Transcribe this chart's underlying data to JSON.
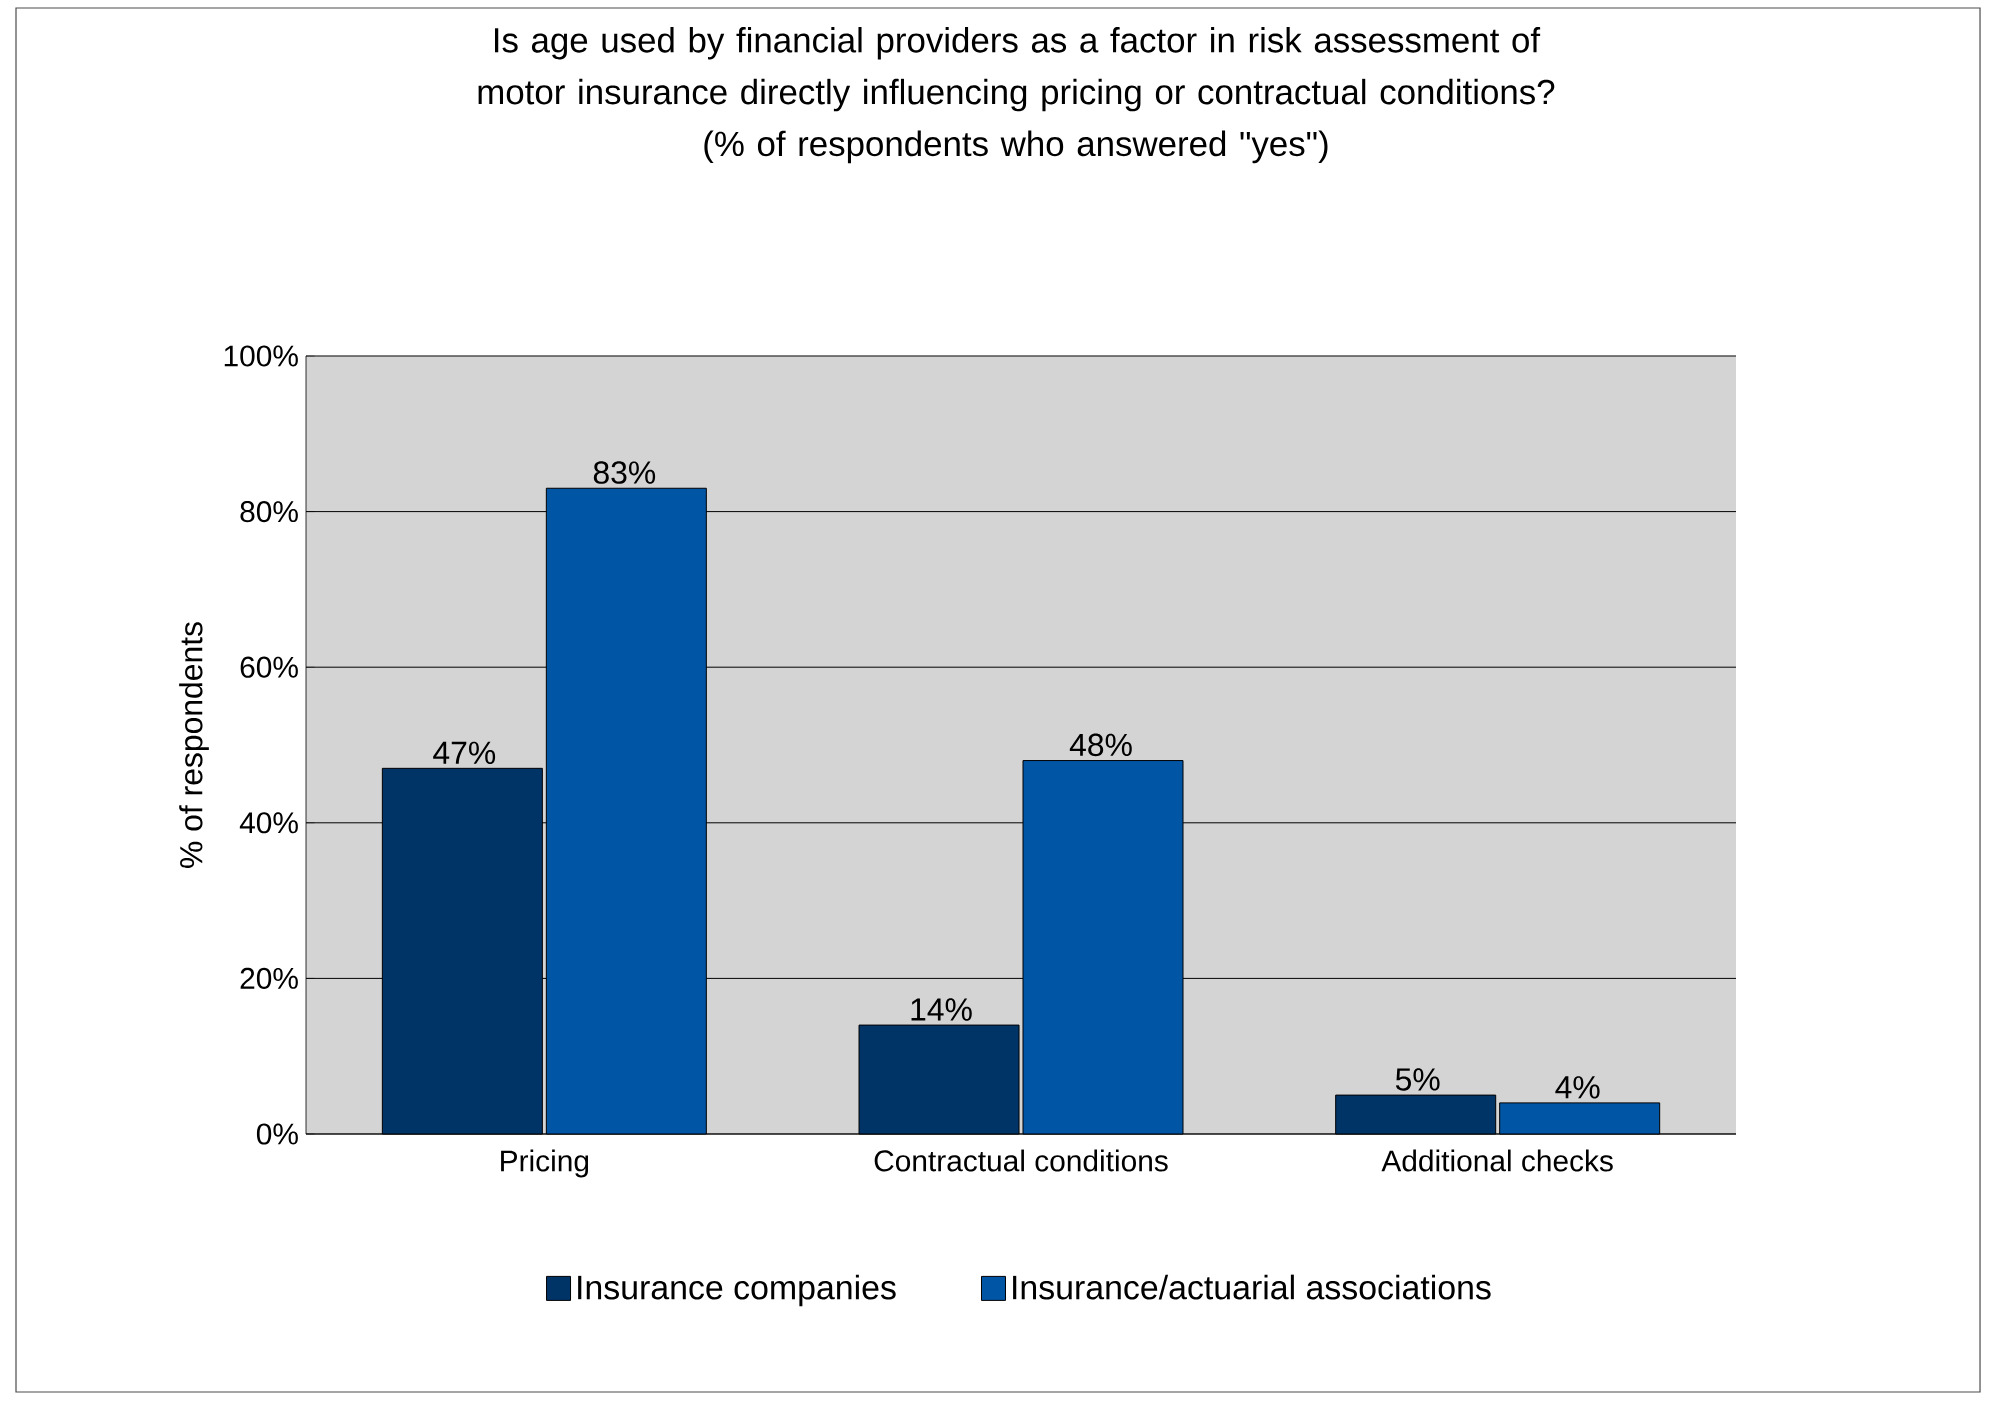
{
  "chart_data": {
    "type": "bar",
    "title": "Is age used by financial providers as a factor in risk assessment of motor insurance directly influencing pricing or contractual conditions?",
    "subtitle": "(% of respondents who answered \"yes\")",
    "ylabel": "% of respondents",
    "categories": [
      "Pricing",
      "Contractual conditions",
      "Additional checks"
    ],
    "series": [
      {
        "name": "Insurance companies",
        "color": "#003366",
        "values": [
          47,
          14,
          5
        ],
        "value_labels": [
          "47%",
          "14%",
          "5%"
        ]
      },
      {
        "name": "Insurance/actuarial associations",
        "color": "#0055a5",
        "values": [
          83,
          48,
          4
        ],
        "value_labels": [
          "83%",
          "48%",
          "4%"
        ]
      }
    ],
    "ylim": [
      0,
      100
    ],
    "yticks": [
      {
        "value": 0,
        "label": "0%"
      },
      {
        "value": 20,
        "label": "20%"
      },
      {
        "value": 40,
        "label": "40%"
      },
      {
        "value": 60,
        "label": "60%"
      },
      {
        "value": 80,
        "label": "80%"
      },
      {
        "value": 100,
        "label": "100%"
      }
    ],
    "grid": "y",
    "legend": "bottom"
  }
}
